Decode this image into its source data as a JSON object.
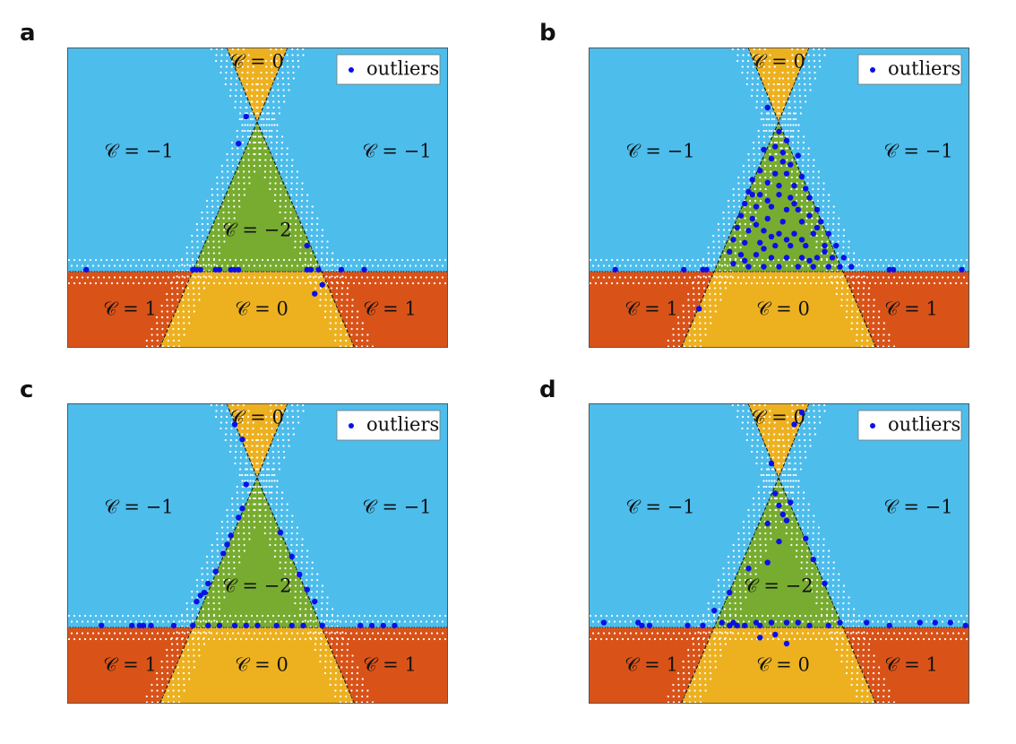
{
  "colors": {
    "blue": "#4dbdec",
    "green": "#77ac30",
    "orange": "#d95319",
    "yellow": "#edb120",
    "outlier": "#0b10e8",
    "boundary_dots": "#ffffff",
    "frame": "#555555"
  },
  "legend": {
    "label": "outliers",
    "marker": "outlier-dot"
  },
  "region_labels": {
    "top": "𝒞 = 0",
    "left_upper": "𝒞 = −1",
    "right_upper": "𝒞 = −1",
    "center": "𝒞 = −2",
    "left_lower": "𝒞 = 1",
    "bottom_center": "𝒞 = 0",
    "right_lower": "𝒞 = 1"
  },
  "panels": [
    {
      "letter": "a",
      "outliers": [
        [
          0.05,
          0.74
        ],
        [
          0.33,
          0.74
        ],
        [
          0.34,
          0.74
        ],
        [
          0.35,
          0.74
        ],
        [
          0.44,
          0.74
        ],
        [
          0.45,
          0.74
        ],
        [
          0.63,
          0.74
        ],
        [
          0.64,
          0.74
        ],
        [
          0.66,
          0.74
        ],
        [
          0.72,
          0.74
        ],
        [
          0.78,
          0.74
        ],
        [
          0.47,
          0.23
        ],
        [
          0.45,
          0.32
        ],
        [
          0.63,
          0.66
        ],
        [
          0.65,
          0.82
        ],
        [
          0.67,
          0.79
        ],
        [
          0.39,
          0.74
        ],
        [
          0.4,
          0.74
        ],
        [
          0.43,
          0.74
        ]
      ],
      "show_center_label": true
    },
    {
      "letter": "b",
      "outliers": [
        [
          0.07,
          0.74
        ],
        [
          0.25,
          0.74
        ],
        [
          0.3,
          0.74
        ],
        [
          0.31,
          0.74
        ],
        [
          0.79,
          0.74
        ],
        [
          0.8,
          0.74
        ],
        [
          0.98,
          0.74
        ],
        [
          0.29,
          0.87
        ],
        [
          0.47,
          0.2
        ],
        [
          0.5,
          0.28
        ],
        [
          0.52,
          0.31
        ],
        [
          0.46,
          0.34
        ],
        [
          0.48,
          0.37
        ],
        [
          0.51,
          0.38
        ],
        [
          0.53,
          0.39
        ],
        [
          0.55,
          0.36
        ],
        [
          0.45,
          0.41
        ],
        [
          0.49,
          0.42
        ],
        [
          0.52,
          0.42
        ],
        [
          0.56,
          0.43
        ],
        [
          0.43,
          0.44
        ],
        [
          0.47,
          0.45
        ],
        [
          0.54,
          0.46
        ],
        [
          0.57,
          0.47
        ],
        [
          0.42,
          0.48
        ],
        [
          0.45,
          0.49
        ],
        [
          0.5,
          0.49
        ],
        [
          0.53,
          0.5
        ],
        [
          0.58,
          0.5
        ],
        [
          0.41,
          0.52
        ],
        [
          0.44,
          0.53
        ],
        [
          0.48,
          0.53
        ],
        [
          0.52,
          0.54
        ],
        [
          0.55,
          0.54
        ],
        [
          0.6,
          0.54
        ],
        [
          0.4,
          0.56
        ],
        [
          0.43,
          0.57
        ],
        [
          0.47,
          0.57
        ],
        [
          0.51,
          0.58
        ],
        [
          0.56,
          0.58
        ],
        [
          0.61,
          0.58
        ],
        [
          0.39,
          0.6
        ],
        [
          0.42,
          0.61
        ],
        [
          0.46,
          0.61
        ],
        [
          0.5,
          0.62
        ],
        [
          0.54,
          0.62
        ],
        [
          0.59,
          0.62
        ],
        [
          0.63,
          0.62
        ],
        [
          0.38,
          0.64
        ],
        [
          0.41,
          0.65
        ],
        [
          0.45,
          0.65
        ],
        [
          0.49,
          0.66
        ],
        [
          0.53,
          0.66
        ],
        [
          0.57,
          0.66
        ],
        [
          0.62,
          0.66
        ],
        [
          0.65,
          0.66
        ],
        [
          0.37,
          0.68
        ],
        [
          0.4,
          0.69
        ],
        [
          0.44,
          0.69
        ],
        [
          0.48,
          0.7
        ],
        [
          0.52,
          0.7
        ],
        [
          0.56,
          0.7
        ],
        [
          0.6,
          0.7
        ],
        [
          0.64,
          0.7
        ],
        [
          0.67,
          0.7
        ],
        [
          0.38,
          0.72
        ],
        [
          0.42,
          0.73
        ],
        [
          0.46,
          0.73
        ],
        [
          0.5,
          0.73
        ],
        [
          0.55,
          0.73
        ],
        [
          0.59,
          0.73
        ],
        [
          0.63,
          0.73
        ],
        [
          0.66,
          0.73
        ],
        [
          0.69,
          0.73
        ],
        [
          0.43,
          0.49
        ],
        [
          0.47,
          0.51
        ],
        [
          0.5,
          0.46
        ],
        [
          0.54,
          0.52
        ],
        [
          0.58,
          0.56
        ],
        [
          0.6,
          0.6
        ],
        [
          0.44,
          0.59
        ],
        [
          0.48,
          0.63
        ],
        [
          0.52,
          0.64
        ],
        [
          0.46,
          0.67
        ],
        [
          0.56,
          0.64
        ],
        [
          0.62,
          0.68
        ],
        [
          0.41,
          0.71
        ],
        [
          0.58,
          0.71
        ],
        [
          0.51,
          0.35
        ],
        [
          0.49,
          0.33
        ]
      ],
      "show_center_label": false
    },
    {
      "letter": "c",
      "outliers": [
        [
          0.09,
          0.74
        ],
        [
          0.17,
          0.74
        ],
        [
          0.19,
          0.74
        ],
        [
          0.2,
          0.74
        ],
        [
          0.22,
          0.74
        ],
        [
          0.28,
          0.74
        ],
        [
          0.33,
          0.74
        ],
        [
          0.37,
          0.74
        ],
        [
          0.4,
          0.74
        ],
        [
          0.44,
          0.74
        ],
        [
          0.47,
          0.74
        ],
        [
          0.5,
          0.74
        ],
        [
          0.55,
          0.74
        ],
        [
          0.59,
          0.74
        ],
        [
          0.62,
          0.74
        ],
        [
          0.67,
          0.74
        ],
        [
          0.77,
          0.74
        ],
        [
          0.8,
          0.74
        ],
        [
          0.83,
          0.74
        ],
        [
          0.86,
          0.74
        ],
        [
          0.44,
          0.07
        ],
        [
          0.46,
          0.12
        ],
        [
          0.47,
          0.27
        ],
        [
          0.46,
          0.35
        ],
        [
          0.45,
          0.38
        ],
        [
          0.43,
          0.44
        ],
        [
          0.42,
          0.47
        ],
        [
          0.41,
          0.5
        ],
        [
          0.39,
          0.56
        ],
        [
          0.37,
          0.6
        ],
        [
          0.36,
          0.63
        ],
        [
          0.56,
          0.43
        ],
        [
          0.59,
          0.51
        ],
        [
          0.61,
          0.57
        ],
        [
          0.63,
          0.62
        ],
        [
          0.65,
          0.66
        ],
        [
          0.34,
          0.66
        ],
        [
          0.35,
          0.64
        ]
      ],
      "show_center_label": true
    },
    {
      "letter": "d",
      "outliers": [
        [
          0.04,
          0.73
        ],
        [
          0.13,
          0.73
        ],
        [
          0.14,
          0.74
        ],
        [
          0.16,
          0.74
        ],
        [
          0.26,
          0.74
        ],
        [
          0.3,
          0.74
        ],
        [
          0.35,
          0.73
        ],
        [
          0.37,
          0.74
        ],
        [
          0.38,
          0.73
        ],
        [
          0.39,
          0.74
        ],
        [
          0.41,
          0.74
        ],
        [
          0.44,
          0.73
        ],
        [
          0.45,
          0.74
        ],
        [
          0.48,
          0.73
        ],
        [
          0.52,
          0.73
        ],
        [
          0.55,
          0.73
        ],
        [
          0.58,
          0.74
        ],
        [
          0.63,
          0.74
        ],
        [
          0.66,
          0.73
        ],
        [
          0.73,
          0.73
        ],
        [
          0.79,
          0.74
        ],
        [
          0.87,
          0.73
        ],
        [
          0.91,
          0.73
        ],
        [
          0.95,
          0.73
        ],
        [
          0.99,
          0.74
        ],
        [
          0.45,
          0.78
        ],
        [
          0.49,
          0.77
        ],
        [
          0.52,
          0.8
        ],
        [
          0.54,
          0.07
        ],
        [
          0.56,
          0.03
        ],
        [
          0.48,
          0.2
        ],
        [
          0.49,
          0.3
        ],
        [
          0.5,
          0.34
        ],
        [
          0.51,
          0.37
        ],
        [
          0.52,
          0.39
        ],
        [
          0.47,
          0.4
        ],
        [
          0.47,
          0.53
        ],
        [
          0.42,
          0.55
        ],
        [
          0.37,
          0.63
        ],
        [
          0.33,
          0.69
        ],
        [
          0.57,
          0.45
        ],
        [
          0.59,
          0.52
        ],
        [
          0.62,
          0.6
        ],
        [
          0.53,
          0.33
        ],
        [
          0.5,
          0.46
        ]
      ],
      "show_center_label": true
    }
  ]
}
